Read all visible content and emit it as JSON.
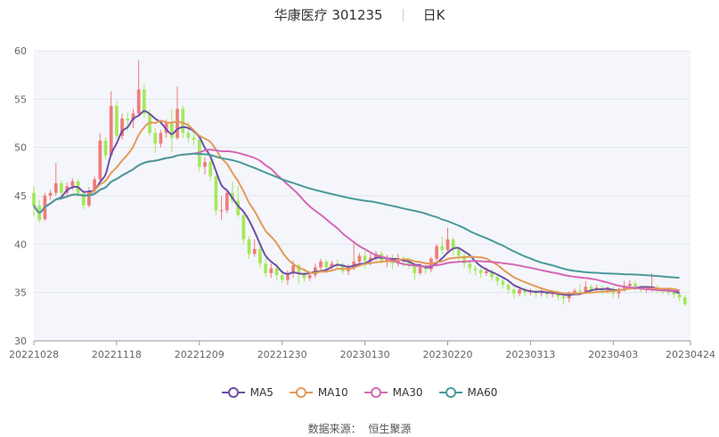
{
  "header": {
    "title": "华康医疗 301235",
    "period": "日K"
  },
  "source": {
    "label": "数据来源：",
    "name": "恒生聚源"
  },
  "chart_data": {
    "type": "candlestick",
    "title": "华康医疗 301235 日K",
    "ylim": [
      30,
      60
    ],
    "y_ticks": [
      30,
      35,
      40,
      45,
      50,
      55,
      60
    ],
    "x_ticks": [
      "20221028",
      "20221118",
      "20221209",
      "20221230",
      "20230130",
      "20230220",
      "20230313",
      "20230403",
      "20230424"
    ],
    "dates": [
      "20221028",
      "20221031",
      "20221101",
      "20221102",
      "20221103",
      "20221104",
      "20221107",
      "20221108",
      "20221109",
      "20221110",
      "20221111",
      "20221114",
      "20221115",
      "20221116",
      "20221117",
      "20221118",
      "20221121",
      "20221122",
      "20221123",
      "20221124",
      "20221125",
      "20221128",
      "20221129",
      "20221130",
      "20221201",
      "20221202",
      "20221205",
      "20221206",
      "20221207",
      "20221208",
      "20221209",
      "20221212",
      "20221213",
      "20221214",
      "20221215",
      "20221216",
      "20221219",
      "20221220",
      "20221221",
      "20221222",
      "20221223",
      "20221226",
      "20221227",
      "20221228",
      "20221229",
      "20221230",
      "20230103",
      "20230104",
      "20230105",
      "20230106",
      "20230109",
      "20230110",
      "20230111",
      "20230112",
      "20230113",
      "20230116",
      "20230117",
      "20230118",
      "20230119",
      "20230120",
      "20230130",
      "20230131",
      "20230201",
      "20230202",
      "20230203",
      "20230206",
      "20230207",
      "20230208",
      "20230209",
      "20230210",
      "20230213",
      "20230214",
      "20230215",
      "20230216",
      "20230217",
      "20230220",
      "20230221",
      "20230222",
      "20230223",
      "20230224",
      "20230227",
      "20230228",
      "20230301",
      "20230302",
      "20230303",
      "20230306",
      "20230307",
      "20230308",
      "20230309",
      "20230310",
      "20230313",
      "20230314",
      "20230315",
      "20230316",
      "20230317",
      "20230320",
      "20230321",
      "20230322",
      "20230323",
      "20230324",
      "20230327",
      "20230328",
      "20230329",
      "20230330",
      "20230331",
      "20230403",
      "20230404",
      "20230406",
      "20230407",
      "20230410",
      "20230411",
      "20230412",
      "20230413",
      "20230414",
      "20230417",
      "20230418",
      "20230419",
      "20230420",
      "20230421",
      "20230424"
    ],
    "candles": [
      [
        45.3,
        44.0,
        46.0,
        42.9
      ],
      [
        44.0,
        42.5,
        44.6,
        42.2
      ],
      [
        42.6,
        45.0,
        45.3,
        42.4
      ],
      [
        45.0,
        45.3,
        45.6,
        44.6
      ],
      [
        45.3,
        46.3,
        48.4,
        45.0
      ],
      [
        46.3,
        45.3,
        46.6,
        44.9
      ],
      [
        45.3,
        46.0,
        46.4,
        45.0
      ],
      [
        46.0,
        46.5,
        46.8,
        45.6
      ],
      [
        46.5,
        45.3,
        46.7,
        44.9
      ],
      [
        45.3,
        44.0,
        45.5,
        43.6
      ],
      [
        44.0,
        45.5,
        45.9,
        43.8
      ],
      [
        45.5,
        46.7,
        47.0,
        45.2
      ],
      [
        46.7,
        50.7,
        51.5,
        46.5
      ],
      [
        50.7,
        49.2,
        51.0,
        48.8
      ],
      [
        49.2,
        54.3,
        55.8,
        49.0
      ],
      [
        54.3,
        51.2,
        54.8,
        50.9
      ],
      [
        51.2,
        53.0,
        53.5,
        50.8
      ],
      [
        53.0,
        52.8,
        53.6,
        51.7
      ],
      [
        52.8,
        53.5,
        54.0,
        52.0
      ],
      [
        53.5,
        56.0,
        59.0,
        53.2
      ],
      [
        56.0,
        53.5,
        56.5,
        53.0
      ],
      [
        53.5,
        51.5,
        53.9,
        51.2
      ],
      [
        51.5,
        50.4,
        52.0,
        49.4
      ],
      [
        50.4,
        51.5,
        51.8,
        50.0
      ],
      [
        51.5,
        52.5,
        52.9,
        51.0
      ],
      [
        52.5,
        51.0,
        54.0,
        49.5
      ],
      [
        51.0,
        54.0,
        56.3,
        50.8
      ],
      [
        54.0,
        51.5,
        54.3,
        51.0
      ],
      [
        51.5,
        51.0,
        52.6,
        50.5
      ],
      [
        51.0,
        50.8,
        51.5,
        50.2
      ],
      [
        50.8,
        48.0,
        51.0,
        47.5
      ],
      [
        48.0,
        48.5,
        49.0,
        47.2
      ],
      [
        48.5,
        47.0,
        48.8,
        46.5
      ],
      [
        47.0,
        43.5,
        47.3,
        43.0
      ],
      [
        43.5,
        43.5,
        45.0,
        42.5
      ],
      [
        43.5,
        45.3,
        45.6,
        43.2
      ],
      [
        45.3,
        44.5,
        46.5,
        44.2
      ],
      [
        44.5,
        43.0,
        46.0,
        42.8
      ],
      [
        43.0,
        40.5,
        43.2,
        40.0
      ],
      [
        40.5,
        39.0,
        40.8,
        38.5
      ],
      [
        39.0,
        39.5,
        40.5,
        38.7
      ],
      [
        39.5,
        38.0,
        39.8,
        37.5
      ],
      [
        38.0,
        37.0,
        38.5,
        36.6
      ],
      [
        37.0,
        37.5,
        38.0,
        36.5
      ],
      [
        37.5,
        36.8,
        38.0,
        36.3
      ],
      [
        36.8,
        36.3,
        37.3,
        36.0
      ],
      [
        36.3,
        37.0,
        37.3,
        35.8
      ],
      [
        37.0,
        37.8,
        38.3,
        36.5
      ],
      [
        37.8,
        37.0,
        38.0,
        35.9
      ],
      [
        37.0,
        36.5,
        37.5,
        36.1
      ],
      [
        36.5,
        36.8,
        37.1,
        36.2
      ],
      [
        36.8,
        37.6,
        38.0,
        36.5
      ],
      [
        37.6,
        38.2,
        38.5,
        37.2
      ],
      [
        38.2,
        37.6,
        38.4,
        37.2
      ],
      [
        37.6,
        38.0,
        38.3,
        37.4
      ],
      [
        38.0,
        37.9,
        38.4,
        37.5
      ],
      [
        37.9,
        37.2,
        38.1,
        36.9
      ],
      [
        37.2,
        37.6,
        37.9,
        36.8
      ],
      [
        37.6,
        38.2,
        40.3,
        37.3
      ],
      [
        38.2,
        38.8,
        39.1,
        37.7
      ],
      [
        38.8,
        38.3,
        39.3,
        37.5
      ],
      [
        38.3,
        38.6,
        39.0,
        37.8
      ],
      [
        38.6,
        39.0,
        39.3,
        38.3
      ],
      [
        39.0,
        38.3,
        39.3,
        37.9
      ],
      [
        38.3,
        38.5,
        38.9,
        37.6
      ],
      [
        38.5,
        38.0,
        38.9,
        37.4
      ],
      [
        38.0,
        38.5,
        39.0,
        37.7
      ],
      [
        38.5,
        38.2,
        38.8,
        37.6
      ],
      [
        38.2,
        37.8,
        38.6,
        37.4
      ],
      [
        37.8,
        37.0,
        38.0,
        36.3
      ],
      [
        37.0,
        37.6,
        38.0,
        36.8
      ],
      [
        37.6,
        37.4,
        38.0,
        36.9
      ],
      [
        37.4,
        38.5,
        38.7,
        37.1
      ],
      [
        38.5,
        39.8,
        40.0,
        38.3
      ],
      [
        39.8,
        39.4,
        40.8,
        38.9
      ],
      [
        39.4,
        40.5,
        41.7,
        39.2
      ],
      [
        40.5,
        39.5,
        40.7,
        38.8
      ],
      [
        39.5,
        38.8,
        39.7,
        38.3
      ],
      [
        38.8,
        38.0,
        39.0,
        37.5
      ],
      [
        38.0,
        37.5,
        38.2,
        37.0
      ],
      [
        37.5,
        37.3,
        37.8,
        36.8
      ],
      [
        37.3,
        37.0,
        37.5,
        36.5
      ],
      [
        37.0,
        37.2,
        37.6,
        36.7
      ],
      [
        37.2,
        36.6,
        37.4,
        36.2
      ],
      [
        36.6,
        36.2,
        36.8,
        35.7
      ],
      [
        36.2,
        35.8,
        36.4,
        35.4
      ],
      [
        35.8,
        35.3,
        36.0,
        34.9
      ],
      [
        35.3,
        34.9,
        35.5,
        34.4
      ],
      [
        34.9,
        35.3,
        35.5,
        34.6
      ],
      [
        35.3,
        35.0,
        35.5,
        34.6
      ],
      [
        35.0,
        35.2,
        35.4,
        34.7
      ],
      [
        35.2,
        34.9,
        35.4,
        34.5
      ],
      [
        34.9,
        35.1,
        35.3,
        34.6
      ],
      [
        35.1,
        34.8,
        35.3,
        34.4
      ],
      [
        34.8,
        35.0,
        35.2,
        34.5
      ],
      [
        35.0,
        34.6,
        35.2,
        34.2
      ],
      [
        34.6,
        34.4,
        34.8,
        33.8
      ],
      [
        34.4,
        34.9,
        35.1,
        34.0
      ],
      [
        34.9,
        35.2,
        35.4,
        34.7
      ],
      [
        35.2,
        35.1,
        35.9,
        34.8
      ],
      [
        35.1,
        35.6,
        36.2,
        35.0
      ],
      [
        35.6,
        35.3,
        35.8,
        35.0
      ],
      [
        35.3,
        35.5,
        35.8,
        35.0
      ],
      [
        35.5,
        35.2,
        35.7,
        34.8
      ],
      [
        35.2,
        35.4,
        35.6,
        34.9
      ],
      [
        35.4,
        34.9,
        35.6,
        34.5
      ],
      [
        34.9,
        35.3,
        35.5,
        34.4
      ],
      [
        35.3,
        35.7,
        36.2,
        35.1
      ],
      [
        35.7,
        35.9,
        36.3,
        35.4
      ],
      [
        35.9,
        35.6,
        36.2,
        35.1
      ],
      [
        35.6,
        35.3,
        35.8,
        35.0
      ],
      [
        35.3,
        35.4,
        35.6,
        35.0
      ],
      [
        35.4,
        35.5,
        37.0,
        35.1
      ],
      [
        35.5,
        35.2,
        35.8,
        34.9
      ],
      [
        35.2,
        35.1,
        35.4,
        34.8
      ],
      [
        35.1,
        35.0,
        35.3,
        34.7
      ],
      [
        35.0,
        34.8,
        35.2,
        34.4
      ],
      [
        34.8,
        34.5,
        35.0,
        34.1
      ],
      [
        34.5,
        33.8,
        34.7,
        33.6
      ]
    ],
    "series": [
      {
        "name": "MA5",
        "color": "#6d4fa6"
      },
      {
        "name": "MA10",
        "color": "#e39a57"
      },
      {
        "name": "MA30",
        "color": "#d568b4"
      },
      {
        "name": "MA60",
        "color": "#4a9a9a"
      }
    ],
    "up_color": "#f07b7b",
    "down_color": "#a5e85b",
    "legend_position": "bottom",
    "grid": true
  }
}
